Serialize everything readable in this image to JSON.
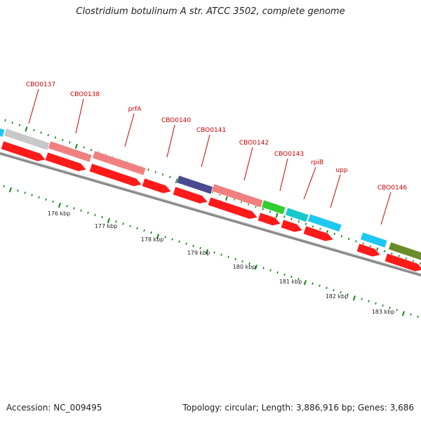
{
  "title": "Clostridium botulinum A str. ATCC 3502, complete genome",
  "footer": {
    "accession": "Accession: NC_009495",
    "summary": "Topology: circular; Length: 3,886,916 bp; Genes: 3,686"
  },
  "colors": {
    "label_red": "#cc0000",
    "cds_red": "#ff1a1a",
    "salmon": "#f08080",
    "gray": "#c8c8c8",
    "light_blue": "#1ec8f0",
    "teal": "#18c8c8",
    "navy": "#4a4a90",
    "green": "#33cc33",
    "olive": "#6b8c2a",
    "backbone": "#888888",
    "tick_green": "#118811"
  },
  "gene_labels": [
    "CBO0137",
    "CBO0138",
    "prfA",
    "CBO0140",
    "CBO0141",
    "CBO0142",
    "CBO0143",
    "rpiB",
    "upp",
    "CBO0146"
  ],
  "scale_labels": [
    "176 kbp",
    "177 kbp",
    "178 kbp",
    "179 kbp",
    "180 kbp",
    "181 kbp",
    "182 kbp",
    "183 kbp"
  ]
}
